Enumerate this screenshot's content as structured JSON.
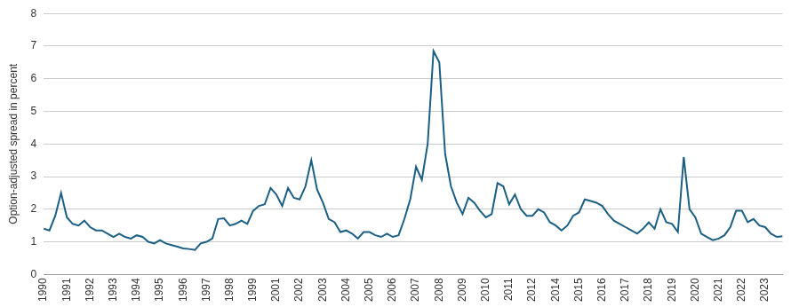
{
  "chart_data": {
    "type": "line",
    "y_label": "Option-adjusted spread in percent",
    "categories": [
      "1990",
      null,
      null,
      null,
      "1991",
      null,
      null,
      null,
      "1992",
      null,
      null,
      null,
      "1993",
      null,
      null,
      null,
      "1994",
      null,
      null,
      null,
      "1995",
      null,
      null,
      null,
      "1996",
      null,
      null,
      null,
      "1997",
      null,
      null,
      null,
      "1998",
      null,
      null,
      null,
      "1999",
      null,
      null,
      null,
      "2001",
      null,
      null,
      null,
      "2002",
      null,
      null,
      null,
      "2003",
      null,
      null,
      null,
      "2004",
      null,
      null,
      null,
      "2005",
      null,
      null,
      null,
      "2006",
      null,
      null,
      null,
      "2007",
      null,
      null,
      null,
      "2008",
      null,
      null,
      null,
      "2009",
      null,
      null,
      null,
      "2010",
      null,
      null,
      null,
      "2011",
      null,
      null,
      null,
      "2012",
      null,
      null,
      null,
      "2014",
      null,
      null,
      null,
      "2015",
      null,
      null,
      null,
      "2016",
      null,
      null,
      null,
      "2017",
      null,
      null,
      null,
      "2018",
      null,
      null,
      null,
      "2019",
      null,
      null,
      null,
      "2020",
      null,
      null,
      null,
      "2021",
      null,
      null,
      null,
      "2022",
      null,
      null,
      null,
      "2023",
      null,
      null,
      null
    ],
    "values": [
      1.4,
      1.35,
      1.8,
      2.5,
      1.75,
      1.55,
      1.5,
      1.65,
      1.45,
      1.35,
      1.35,
      1.25,
      1.15,
      1.25,
      1.15,
      1.1,
      1.2,
      1.15,
      1.0,
      0.95,
      1.05,
      0.95,
      0.9,
      0.85,
      0.8,
      0.78,
      0.75,
      0.95,
      1.0,
      1.1,
      1.7,
      1.72,
      1.5,
      1.55,
      1.65,
      1.55,
      1.95,
      2.1,
      2.15,
      2.65,
      2.45,
      2.1,
      2.65,
      2.35,
      2.3,
      2.7,
      3.5,
      2.6,
      2.2,
      1.7,
      1.6,
      1.3,
      1.35,
      1.25,
      1.1,
      1.3,
      1.3,
      1.2,
      1.15,
      1.25,
      1.15,
      1.2,
      1.7,
      2.3,
      3.3,
      2.9,
      4.0,
      6.85,
      6.5,
      3.7,
      2.7,
      2.2,
      1.85,
      2.35,
      2.2,
      1.95,
      1.75,
      1.85,
      2.8,
      2.7,
      2.15,
      2.45,
      2.0,
      1.8,
      1.8,
      2.0,
      1.9,
      1.6,
      1.5,
      1.35,
      1.5,
      1.8,
      1.9,
      2.3,
      2.25,
      2.2,
      2.1,
      1.85,
      1.65,
      1.55,
      1.45,
      1.35,
      1.25,
      1.4,
      1.6,
      1.4,
      2.0,
      1.6,
      1.55,
      1.3,
      3.6,
      2.0,
      1.75,
      1.25,
      1.15,
      1.05,
      1.1,
      1.2,
      1.45,
      1.95,
      1.95,
      1.6,
      1.7,
      1.5,
      1.45,
      1.25,
      1.15,
      1.17
    ],
    "color": "#1b5f84",
    "ylim": [
      0,
      8
    ],
    "yticks": [
      0,
      1,
      2,
      3,
      4,
      5,
      6,
      7,
      8
    ],
    "grid": true
  }
}
